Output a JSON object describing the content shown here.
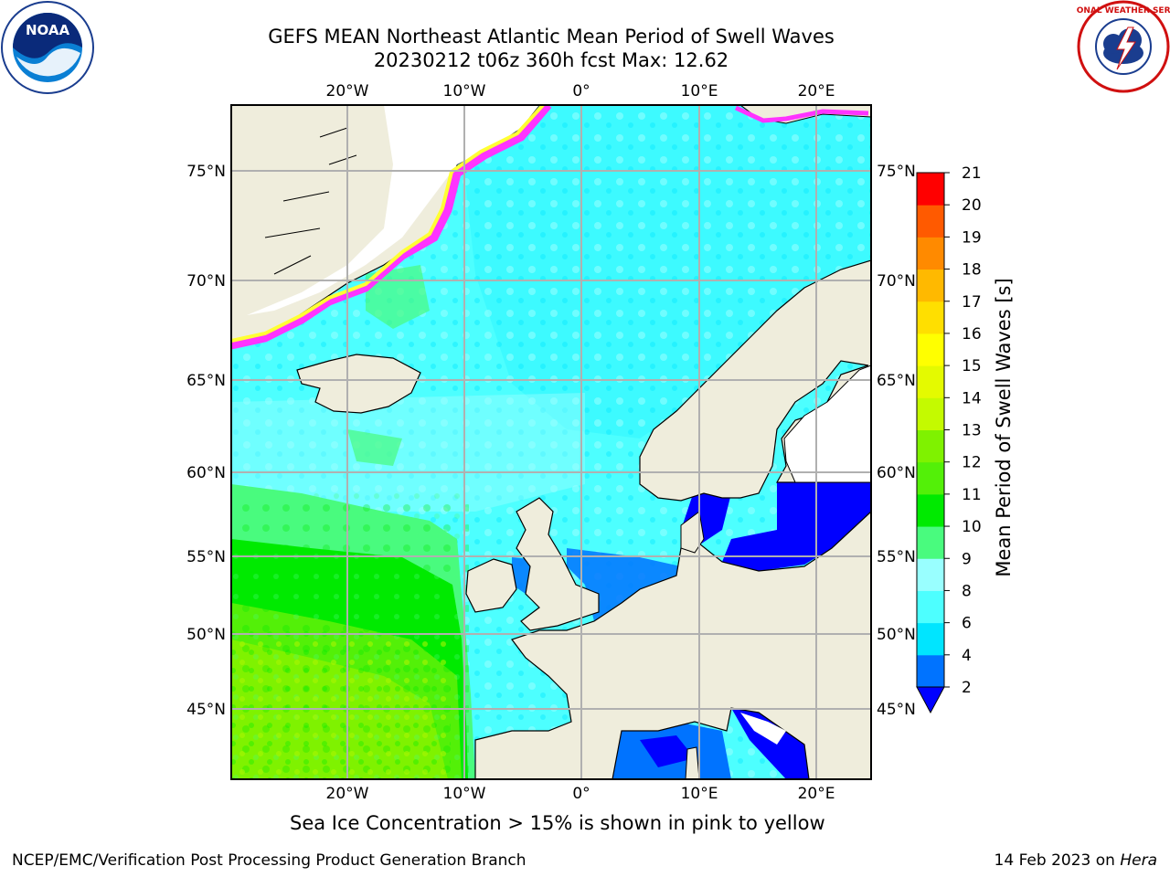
{
  "title_line1": "GEFS MEAN Northeast Atlantic Mean Period of Swell Waves",
  "title_line2": "20230212 t06z 360h fcst   Max: 12.62",
  "colorbar": {
    "title": "Mean Period of Swell Waves [s]",
    "ticks": [
      "2",
      "4",
      "6",
      "8",
      "9",
      "10",
      "11",
      "12",
      "13",
      "14",
      "15",
      "16",
      "17",
      "18",
      "19",
      "20",
      "21"
    ],
    "colors": [
      "#0073ff",
      "#00e5ff",
      "#4dffff",
      "#99ffff",
      "#49fb7e",
      "#00ea00",
      "#53f008",
      "#7ff200",
      "#c4fa00",
      "#e4fa00",
      "#ffff00",
      "#ffdf00",
      "#ffb900",
      "#ff8a00",
      "#ff5a00",
      "#ff2a00",
      "#ff0000"
    ],
    "under_color": "#0000ff"
  },
  "axes": {
    "top_lon_labels": [
      "20°W",
      "10°W",
      "0°",
      "10°E",
      "20°E"
    ],
    "bottom_lon_labels": [
      "20°W",
      "10°W",
      "0°",
      "10°E",
      "20°E"
    ],
    "left_lat_labels": [
      "75°N",
      "70°N",
      "65°N",
      "60°N",
      "55°N",
      "50°N",
      "45°N"
    ],
    "right_lat_labels": [
      "75°N",
      "70°N",
      "65°N",
      "60°N",
      "55°N",
      "50°N",
      "45°N"
    ]
  },
  "note": "Sea Ice Concentration > 15% is shown in pink to yellow",
  "footer": {
    "left": "NCEP/EMC/Verification Post Processing Product Generation Branch",
    "right_date": "14 Feb 2023 on ",
    "right_host": "Hera"
  },
  "logos": {
    "noaa_text": "NOAA",
    "nws_text": "NATIONAL WEATHER SERVICE"
  },
  "palette": {
    "land": "#efeddc",
    "sea_ice_free_land": "#ffffff",
    "ocean_light": "#4dffff",
    "ocean_cyan": "#00e5ff",
    "swell_green": "#00ea00",
    "swell_lime": "#7ff200",
    "grid": "#b0b0b0",
    "ice_pink": "#ff33ff",
    "ice_yellow": "#ffff33"
  }
}
